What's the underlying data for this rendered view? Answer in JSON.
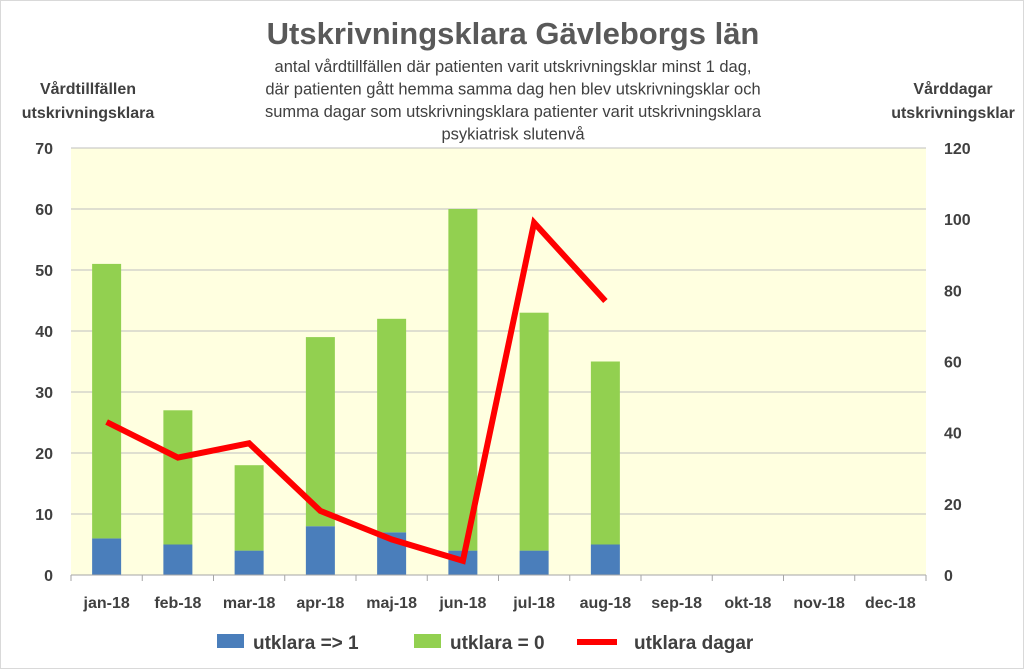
{
  "chart_data": {
    "type": "bar",
    "stacked": true,
    "title": "Utskrivningsklara Gävleborgs län",
    "subtitle_lines": [
      "antal vårdtillfällen där patienten varit utskrivningsklar minst 1 dag,",
      "där patienten gått hemma samma dag hen blev utskrivningsklar och",
      "summa dagar som utskrivningsklara patienter varit utskrivningsklara",
      "psykiatrisk slutenvå"
    ],
    "ylabel_left_lines": [
      "Vårdtillfällen",
      "utskrivningsklara"
    ],
    "ylabel_right_lines": [
      "Vårddagar",
      "utskrivningsklar"
    ],
    "ylim_left": [
      0,
      70
    ],
    "yticks_left": [
      0,
      10,
      20,
      30,
      40,
      50,
      60,
      70
    ],
    "ylim_right": [
      0,
      120
    ],
    "yticks_right": [
      0,
      20,
      40,
      60,
      80,
      100,
      120
    ],
    "categories": [
      "jan-18",
      "feb-18",
      "mar-18",
      "apr-18",
      "maj-18",
      "jun-18",
      "jul-18",
      "aug-18",
      "sep-18",
      "okt-18",
      "nov-18",
      "dec-18"
    ],
    "series": [
      {
        "name": "utklara => 1",
        "type": "bar",
        "axis": "left",
        "color": "#4a7ebb",
        "values": [
          6,
          5,
          4,
          8,
          7,
          4,
          4,
          5,
          null,
          null,
          null,
          null
        ]
      },
      {
        "name": "utklara = 0",
        "type": "bar",
        "axis": "left",
        "color": "#92d050",
        "values": [
          45,
          22,
          14,
          31,
          35,
          56,
          39,
          30,
          null,
          null,
          null,
          null
        ]
      },
      {
        "name": "utklara dagar",
        "type": "line",
        "axis": "right",
        "color": "#ff0000",
        "values": [
          43,
          33,
          37,
          18,
          10,
          4,
          99,
          77,
          null,
          null,
          null,
          null
        ]
      }
    ],
    "plot_background": "#ffffe0",
    "grid": "horizontal",
    "legend_position": "bottom"
  }
}
